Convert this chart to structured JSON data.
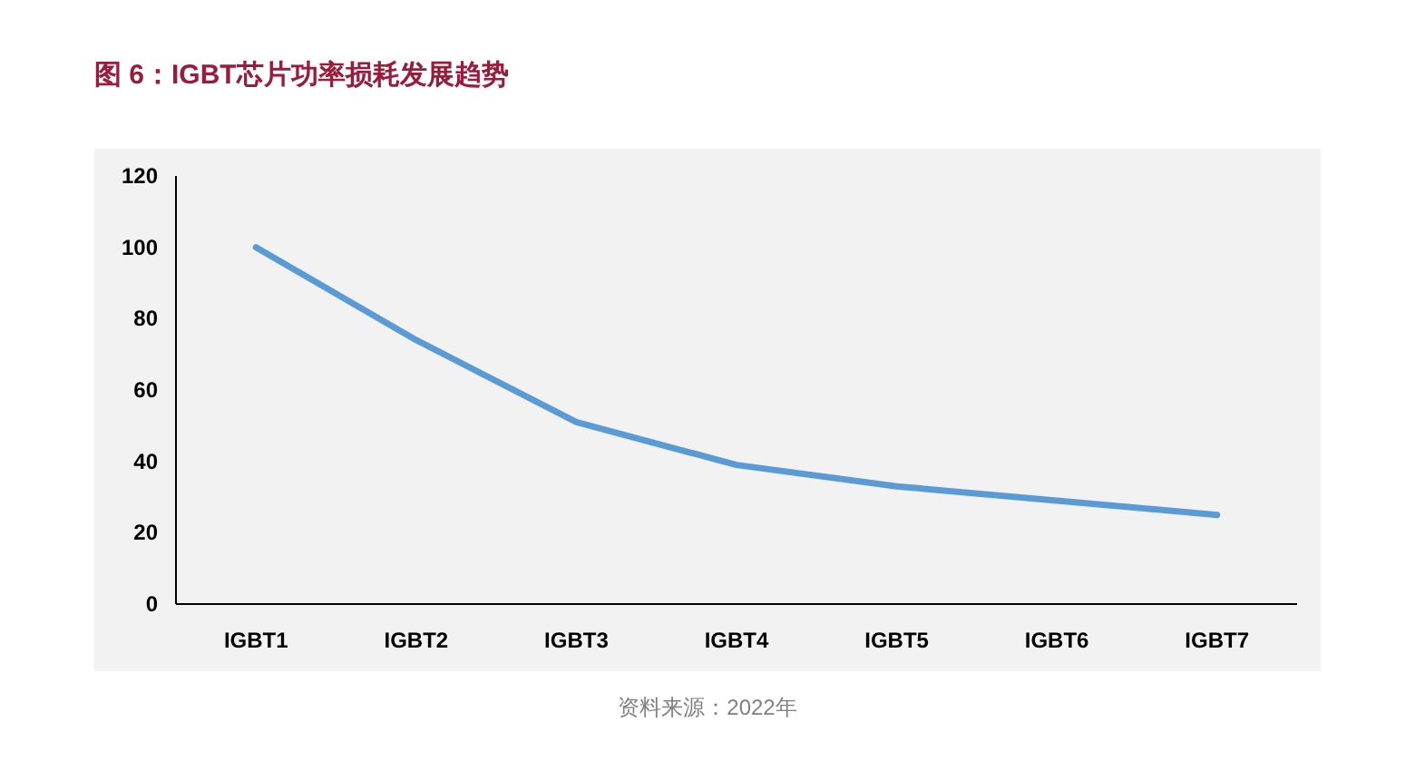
{
  "chart_data": {
    "type": "line",
    "title": "图 6：IGBT芯片功率损耗发展趋势",
    "categories": [
      "IGBT1",
      "IGBT2",
      "IGBT3",
      "IGBT4",
      "IGBT5",
      "IGBT6",
      "IGBT7"
    ],
    "values": [
      100,
      74,
      51,
      39,
      33,
      29,
      25
    ],
    "color": "#5b9bd5",
    "ylim": [
      0,
      120
    ],
    "yticks": [
      0,
      20,
      40,
      60,
      80,
      100,
      120
    ],
    "annotations": [
      "资料来源：2022年"
    ]
  }
}
